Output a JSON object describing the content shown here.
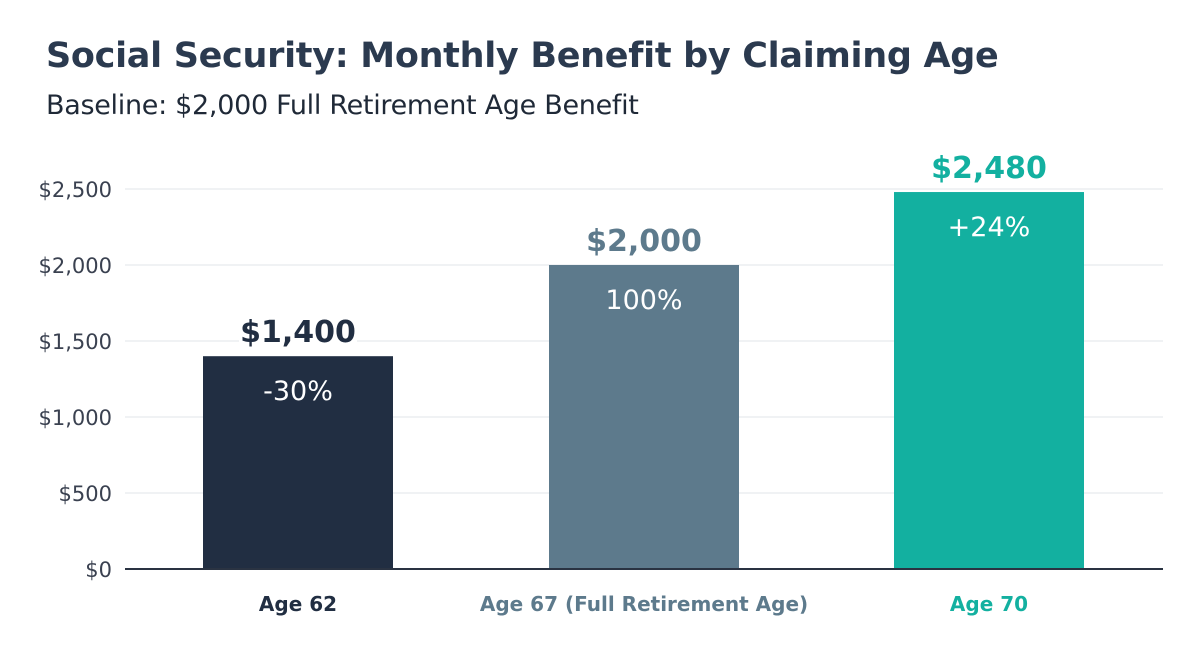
{
  "chart_data": {
    "type": "bar",
    "title": "Social Security: Monthly Benefit by Claiming Age",
    "subtitle": "Baseline: $2,000 Full Retirement Age Benefit",
    "xlabel": "",
    "ylabel": "",
    "categories": [
      "Age 62",
      "Age 67 (Full Retirement Age)",
      "Age 70"
    ],
    "values": [
      1400,
      2000,
      2480
    ],
    "value_labels": [
      "$1,400",
      "$2,000",
      "$2,480"
    ],
    "percent_labels": [
      "-30%",
      "100%",
      "+24%"
    ],
    "colors": [
      "#212e42",
      "#5d7a8c",
      "#13b0a0"
    ],
    "ylim": [
      0,
      2500
    ],
    "yticks": [
      0,
      500,
      1000,
      1500,
      2000,
      2500
    ],
    "ytick_labels": [
      "$0",
      "$500",
      "$1,000",
      "$1,500",
      "$2,000",
      "$2,500"
    ],
    "grid": true,
    "legend": "none"
  }
}
